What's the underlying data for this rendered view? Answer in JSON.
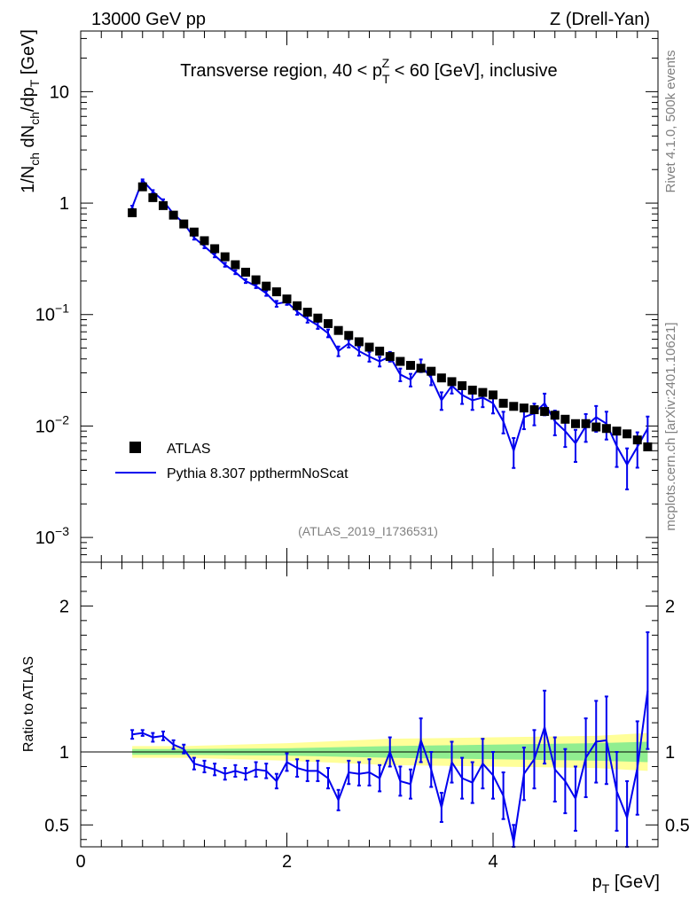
{
  "header": {
    "left": "13000 GeV pp",
    "right": "Z (Drell-Yan)"
  },
  "side": {
    "rivet": "Rivet 4.1.0,  500k events",
    "mcplots": "mcplots.cern.ch [arXiv:2401.10621]"
  },
  "colors": {
    "data": "#000000",
    "mc": "#0000ee",
    "band_inner": "#90ee90",
    "band_outer": "#ffff99"
  },
  "chart_data": [
    {
      "type": "scatter",
      "panel": "main",
      "title": "Transverse region, 40 < p_T^Z < 60 [GeV], inclusive",
      "title_parts": {
        "pre": "Transverse region, 40 < p",
        "sup": "Z",
        "sub": "T",
        "post": " < 60 [GeV], inclusive"
      },
      "ylabel": "1/N_ch dN_ch/dp_T [GeV]",
      "ylabel_parts": {
        "a": "1/N",
        "a_sub": "ch",
        "b": " dN",
        "b_sub": "ch",
        "c": "/dp",
        "c_sub": "T",
        "d": " [GeV]"
      },
      "yscale": "log",
      "ylim": [
        0.0006,
        35
      ],
      "xlim": [
        0,
        5.6
      ],
      "y_ticks": [
        {
          "value": 10,
          "label": "10"
        },
        {
          "value": 1,
          "label": "1"
        },
        {
          "value": 0.1,
          "mant": "10",
          "exp": "−1"
        },
        {
          "value": 0.01,
          "mant": "10",
          "exp": "−2"
        },
        {
          "value": 0.001,
          "mant": "10",
          "exp": "−3"
        }
      ],
      "legend": {
        "position": "bottom-left",
        "entries": [
          "ATLAS",
          "Pythia 8.307 ppthermNoScat"
        ]
      },
      "watermark": "(ATLAS_2019_I1736531)",
      "x": [
        0.5,
        0.6,
        0.7,
        0.8,
        0.9,
        1.0,
        1.1,
        1.2,
        1.3,
        1.4,
        1.5,
        1.6,
        1.7,
        1.8,
        1.9,
        2.0,
        2.1,
        2.2,
        2.3,
        2.4,
        2.5,
        2.6,
        2.7,
        2.8,
        2.9,
        3.0,
        3.1,
        3.2,
        3.3,
        3.4,
        3.5,
        3.6,
        3.7,
        3.8,
        3.9,
        4.0,
        4.1,
        4.2,
        4.3,
        4.4,
        4.5,
        4.6,
        4.7,
        4.8,
        4.9,
        5.0,
        5.1,
        5.2,
        5.3,
        5.4,
        5.5
      ],
      "series": [
        {
          "name": "ATLAS",
          "values": [
            0.82,
            1.4,
            1.12,
            0.95,
            0.78,
            0.65,
            0.55,
            0.46,
            0.39,
            0.33,
            0.28,
            0.24,
            0.205,
            0.18,
            0.16,
            0.138,
            0.12,
            0.105,
            0.093,
            0.083,
            0.072,
            0.065,
            0.057,
            0.051,
            0.047,
            0.042,
            0.038,
            0.035,
            0.033,
            0.031,
            0.027,
            0.025,
            0.023,
            0.021,
            0.02,
            0.019,
            0.016,
            0.015,
            0.0145,
            0.014,
            0.0135,
            0.0125,
            0.0115,
            0.0105,
            0.0105,
            0.0098,
            0.0095,
            0.009,
            0.0085,
            0.0075,
            0.0065
          ]
        },
        {
          "name": "Pythia 8.307 ppthermNoScat",
          "values": [
            0.92,
            1.6,
            1.27,
            1.05,
            0.8,
            0.66,
            0.49,
            0.41,
            0.34,
            0.28,
            0.24,
            0.2,
            0.18,
            0.155,
            0.125,
            0.13,
            0.106,
            0.091,
            0.08,
            0.068,
            0.047,
            0.055,
            0.047,
            0.042,
            0.038,
            0.042,
            0.029,
            0.026,
            0.035,
            0.027,
            0.017,
            0.023,
            0.019,
            0.017,
            0.018,
            0.016,
            0.011,
            0.006,
            0.012,
            0.013,
            0.016,
            0.011,
            0.009,
            0.007,
            0.01,
            0.012,
            0.0105,
            0.0066,
            0.0045,
            0.0065,
            0.0095
          ],
          "rel_err": [
            0.03,
            0.02,
            0.03,
            0.03,
            0.03,
            0.03,
            0.04,
            0.04,
            0.04,
            0.04,
            0.04,
            0.04,
            0.04,
            0.05,
            0.06,
            0.06,
            0.06,
            0.07,
            0.07,
            0.08,
            0.1,
            0.08,
            0.09,
            0.1,
            0.1,
            0.1,
            0.13,
            0.13,
            0.13,
            0.14,
            0.18,
            0.15,
            0.17,
            0.18,
            0.18,
            0.19,
            0.22,
            0.3,
            0.22,
            0.22,
            0.22,
            0.25,
            0.28,
            0.32,
            0.28,
            0.26,
            0.28,
            0.35,
            0.4,
            0.35,
            0.28
          ]
        }
      ]
    },
    {
      "type": "line",
      "panel": "ratio",
      "ylabel": "Ratio to ATLAS",
      "xlabel": "p_T [GeV]",
      "xlabel_parts": {
        "a": "p",
        "sub": "T",
        "b": " [GeV]"
      },
      "ylim": [
        0.35,
        2.3
      ],
      "xlim": [
        0,
        5.6
      ],
      "reference_line": 1,
      "y_ticks": [
        {
          "value": 0.5,
          "label": "0.5"
        },
        {
          "value": 1,
          "label": "1"
        },
        {
          "value": 2,
          "label": "2"
        }
      ],
      "x_ticks": [
        {
          "value": 0,
          "label": "0"
        },
        {
          "value": 2,
          "label": "2"
        },
        {
          "value": 4,
          "label": "4"
        }
      ],
      "band_inner": [
        [
          0.5,
          0.02
        ],
        [
          1.0,
          0.02
        ],
        [
          2.0,
          0.025
        ],
        [
          3.0,
          0.04
        ],
        [
          4.0,
          0.05
        ],
        [
          5.0,
          0.06
        ],
        [
          5.5,
          0.07
        ]
      ],
      "band_outer": [
        [
          0.5,
          0.04
        ],
        [
          1.0,
          0.04
        ],
        [
          2.0,
          0.06
        ],
        [
          3.0,
          0.09
        ],
        [
          4.0,
          0.1
        ],
        [
          5.0,
          0.11
        ],
        [
          5.5,
          0.13
        ]
      ],
      "series": [
        {
          "name": "Pythia 8.307 ppthermNoScat / ATLAS",
          "values": [
            1.12,
            1.13,
            1.1,
            1.11,
            1.05,
            1.02,
            0.92,
            0.9,
            0.88,
            0.85,
            0.87,
            0.85,
            0.88,
            0.87,
            0.8,
            0.93,
            0.89,
            0.87,
            0.87,
            0.82,
            0.67,
            0.86,
            0.85,
            0.86,
            0.82,
            1.0,
            0.8,
            0.78,
            1.08,
            0.88,
            0.62,
            0.93,
            0.82,
            0.79,
            0.92,
            0.84,
            0.7,
            0.38,
            0.85,
            0.95,
            1.17,
            0.88,
            0.8,
            0.68,
            0.96,
            1.07,
            1.08,
            0.73,
            0.55,
            0.89,
            1.42
          ],
          "err": [
            0.03,
            0.02,
            0.03,
            0.03,
            0.03,
            0.03,
            0.04,
            0.04,
            0.04,
            0.04,
            0.04,
            0.04,
            0.05,
            0.05,
            0.05,
            0.06,
            0.06,
            0.07,
            0.07,
            0.07,
            0.07,
            0.08,
            0.08,
            0.09,
            0.09,
            0.1,
            0.1,
            0.1,
            0.15,
            0.12,
            0.1,
            0.14,
            0.14,
            0.14,
            0.17,
            0.16,
            0.16,
            0.12,
            0.18,
            0.2,
            0.25,
            0.22,
            0.22,
            0.22,
            0.27,
            0.28,
            0.3,
            0.27,
            0.25,
            0.32,
            0.4
          ]
        }
      ]
    }
  ]
}
